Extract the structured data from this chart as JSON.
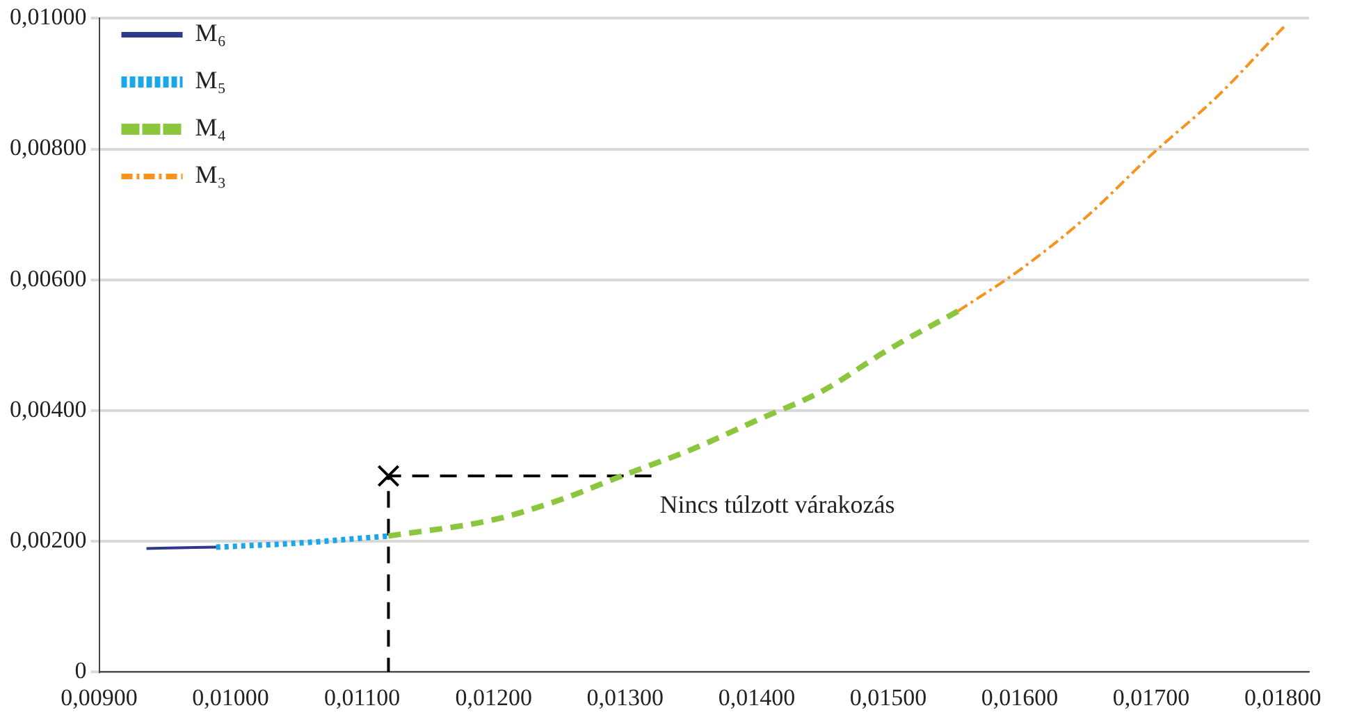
{
  "chart_data": {
    "type": "line",
    "xlim": [
      0.009,
      0.0182
    ],
    "ylim": [
      0,
      0.01
    ],
    "xticks": [
      {
        "value": 0.009,
        "label": "0,00900"
      },
      {
        "value": 0.01,
        "label": "0,01000"
      },
      {
        "value": 0.011,
        "label": "0,01100"
      },
      {
        "value": 0.012,
        "label": "0,01200"
      },
      {
        "value": 0.013,
        "label": "0,01300"
      },
      {
        "value": 0.014,
        "label": "0,01400"
      },
      {
        "value": 0.015,
        "label": "0,01500"
      },
      {
        "value": 0.016,
        "label": "0,01600"
      },
      {
        "value": 0.017,
        "label": "0,01700"
      },
      {
        "value": 0.018,
        "label": "0,01800"
      }
    ],
    "yticks": [
      {
        "value": 0,
        "label": "0"
      },
      {
        "value": 0.002,
        "label": "0,00200"
      },
      {
        "value": 0.004,
        "label": "0,00400"
      },
      {
        "value": 0.006,
        "label": "0,00600"
      },
      {
        "value": 0.008,
        "label": "0,00800"
      },
      {
        "value": 0.01,
        "label": "0,01000"
      }
    ],
    "grid": "y",
    "legend": "top left",
    "marker": "none",
    "series": [
      {
        "name": "M₆",
        "color": "#2e3a8c",
        "line_style": "solid",
        "x": [
          0.00936,
          0.0096,
          0.00989
        ],
        "values": [
          0.00189,
          0.0019,
          0.00191
        ]
      },
      {
        "name": "M₅",
        "color": "#1aa7e8",
        "line_style": "dotted",
        "x": [
          0.00989,
          0.0105,
          0.0112
        ],
        "values": [
          0.00191,
          0.00197,
          0.00208
        ]
      },
      {
        "name": "M₄",
        "color": "#8cc63f",
        "line_style": "dashed",
        "x": [
          0.0112,
          0.012,
          0.0125,
          0.013,
          0.0135,
          0.014,
          0.0145,
          0.015,
          0.01553
        ],
        "values": [
          0.00208,
          0.00233,
          0.00263,
          0.00302,
          0.0034,
          0.00385,
          0.0043,
          0.00493,
          0.00552
        ]
      },
      {
        "name": "M₃",
        "color": "#f7931e",
        "line_style": "dashdot",
        "x": [
          0.01553,
          0.016,
          0.0165,
          0.017,
          0.0175,
          0.018,
          0.01803
        ],
        "values": [
          0.00552,
          0.00615,
          0.00695,
          0.00791,
          0.0088,
          0.00985,
          0.00991
        ]
      },
      {
        "color": "#000000",
        "line_style": "dashed",
        "x": [
          0.0132,
          0.0112,
          0.0112
        ],
        "values": [
          0.003,
          0.003,
          0
        ]
      },
      {
        "type": "scatter",
        "marker": "cross",
        "color": "#000000",
        "x": [
          0.0112
        ],
        "values": [
          0.003
        ]
      }
    ],
    "annotations": [
      {
        "text": "Nincs túlzott várakozás",
        "x": 0.0132,
        "y": 0.003
      }
    ]
  }
}
